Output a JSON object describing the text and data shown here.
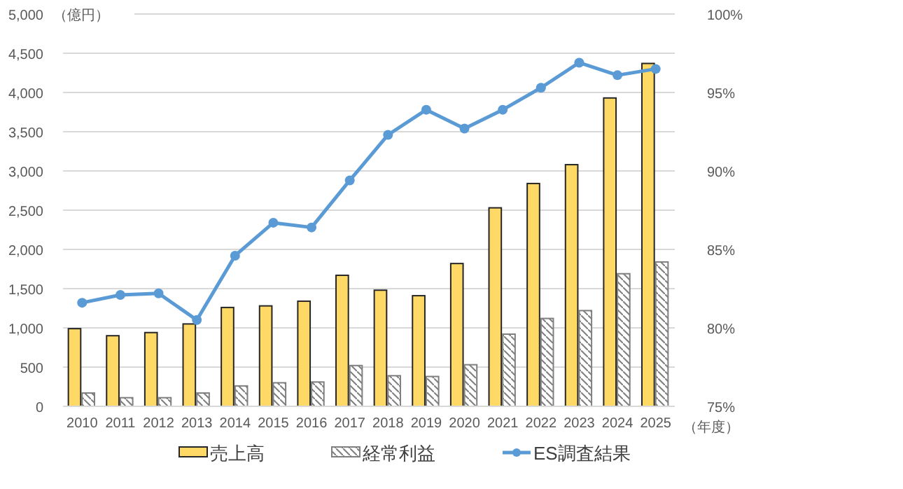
{
  "chart_data": {
    "type": "bar",
    "ylabel": "（億円）",
    "xlabel": "（年度）",
    "categories": [
      "2010",
      "2011",
      "2012",
      "2013",
      "2014",
      "2015",
      "2016",
      "2017",
      "2018",
      "2019",
      "2020",
      "2021",
      "2022",
      "2023",
      "2024",
      "2025"
    ],
    "series": [
      {
        "name": "売上高",
        "color": "#ffd966",
        "values": [
          990,
          900,
          940,
          1050,
          1260,
          1280,
          1340,
          1670,
          1480,
          1410,
          1820,
          2530,
          2840,
          3080,
          3930,
          4370
        ]
      },
      {
        "name": "経常利益",
        "color": "#7f7f7f",
        "values": [
          170,
          110,
          110,
          170,
          260,
          300,
          310,
          520,
          390,
          380,
          530,
          920,
          1120,
          1220,
          1690,
          1840
        ]
      },
      {
        "name": "ES調査結果",
        "type": "line",
        "axis": "y2",
        "color": "#5b9bd5",
        "marker": "circle",
        "values": [
          81.6,
          82.1,
          82.2,
          80.5,
          84.6,
          86.7,
          86.4,
          89.4,
          92.3,
          93.9,
          92.7,
          93.9,
          95.3,
          96.9,
          96.1,
          96.5
        ]
      }
    ],
    "ylim": [
      0,
      5000
    ],
    "yticks": [
      0,
      {
        "value": 500,
        "label": "500"
      },
      {
        "value": 1000,
        "label": "1,000"
      },
      {
        "value": 1500,
        "label": "1,500"
      },
      {
        "value": 2000,
        "label": "2,000"
      },
      {
        "value": 2500,
        "label": "2,500"
      },
      {
        "value": 3000,
        "label": "3,000"
      },
      {
        "value": 3500,
        "label": "3,500"
      },
      {
        "value": 4000,
        "label": "4,000"
      },
      {
        "value": 4500,
        "label": "4,500"
      },
      {
        "value": 5000,
        "label": "5,000"
      }
    ],
    "y2lim": [
      75,
      100
    ],
    "y2ticks": [
      {
        "value": 75,
        "label": "75%"
      },
      {
        "value": 80,
        "label": "80%"
      },
      {
        "value": 85,
        "label": "85%"
      },
      {
        "value": 90,
        "label": "90%"
      },
      {
        "value": 95,
        "label": "95%"
      },
      {
        "value": 100,
        "label": "100%"
      }
    ],
    "grid": "y",
    "legend": "bottom"
  }
}
